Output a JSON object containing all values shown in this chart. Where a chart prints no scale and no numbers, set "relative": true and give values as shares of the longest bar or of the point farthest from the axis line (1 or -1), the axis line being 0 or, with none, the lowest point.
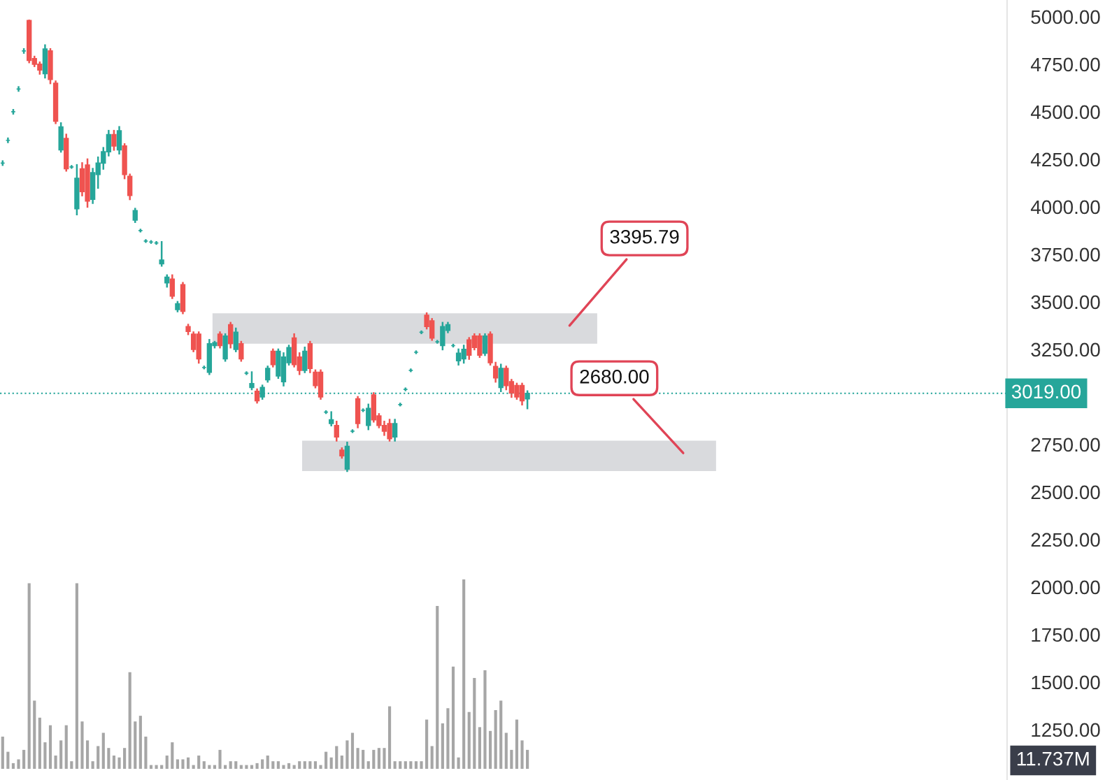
{
  "chart_data": [
    {
      "type": "candlestick",
      "categories": [
        null,
        null,
        null,
        null,
        null,
        null,
        null,
        null,
        null,
        null,
        null,
        null,
        null,
        null,
        null,
        null,
        null,
        null,
        null,
        null,
        null,
        null,
        null,
        null,
        null,
        null,
        null,
        null,
        null,
        null,
        null,
        null,
        null,
        null,
        null,
        null,
        null,
        null,
        null,
        null,
        null,
        null,
        null,
        null,
        null,
        null,
        null,
        null,
        null,
        null,
        null,
        null,
        null,
        null,
        null,
        null,
        null,
        null,
        null,
        null,
        null,
        null,
        null,
        null,
        null,
        null,
        null,
        null,
        null,
        null,
        null,
        null,
        null,
        null,
        null,
        null,
        null,
        null,
        null,
        null,
        null,
        null,
        null,
        null,
        null,
        null,
        null,
        null,
        null,
        null,
        null,
        null,
        null,
        null,
        null,
        null,
        null,
        null,
        null,
        null,
        null,
        null,
        null,
        null,
        null,
        null,
        null,
        null,
        null,
        null,
        null,
        null,
        null,
        null,
        null,
        null,
        null,
        null,
        null,
        null,
        null,
        null,
        null,
        null,
        null,
        null,
        null,
        null,
        null,
        null,
        null,
        null,
        null,
        null,
        null,
        null,
        null,
        null,
        null,
        null,
        null,
        null,
        null,
        null,
        null,
        null,
        null,
        null,
        null,
        null,
        null,
        null,
        null,
        null,
        null,
        null,
        null,
        null,
        null,
        null,
        null,
        null,
        null,
        null,
        null,
        null,
        null,
        null,
        null,
        null,
        null,
        null,
        null,
        null,
        null,
        null,
        null,
        null,
        null,
        null,
        null,
        null,
        null,
        null,
        null,
        null,
        null,
        null,
        null,
        null
      ],
      "ohlc": [
        [
          4230,
          4240,
          4220,
          4230
        ],
        [
          4350,
          4360,
          4340,
          4350
        ],
        [
          4500,
          4510,
          4490,
          4500
        ],
        [
          4620,
          4630,
          4610,
          4620
        ],
        [
          4820,
          4830,
          4810,
          4820
        ],
        [
          4980,
          4980,
          4760,
          4770
        ],
        [
          4780,
          4790,
          4740,
          4750
        ],
        [
          4750,
          4760,
          4700,
          4720
        ],
        [
          4700,
          4850,
          4680,
          4830
        ],
        [
          4820,
          4830,
          4650,
          4670
        ],
        [
          4650,
          4660,
          4440,
          4450
        ],
        [
          4300,
          4440,
          4290,
          4420
        ],
        [
          4360,
          4380,
          4190,
          4200
        ],
        [
          4210,
          4215,
          4205,
          4210
        ],
        [
          3990,
          4220,
          3960,
          4150
        ],
        [
          4200,
          4230,
          4060,
          4080
        ],
        [
          4220,
          4250,
          4000,
          4030
        ],
        [
          4040,
          4200,
          4020,
          4180
        ],
        [
          4170,
          4260,
          4100,
          4230
        ],
        [
          4230,
          4310,
          4200,
          4290
        ],
        [
          4290,
          4400,
          4270,
          4380
        ],
        [
          4380,
          4400,
          4300,
          4320
        ],
        [
          4300,
          4420,
          4280,
          4400
        ],
        [
          4320,
          4330,
          4150,
          4170
        ],
        [
          4160,
          4170,
          4040,
          4060
        ],
        [
          3930,
          3990,
          3920,
          3980
        ],
        [
          3875,
          3880,
          3870,
          3875
        ],
        [
          3820,
          3825,
          3815,
          3820
        ],
        [
          3815,
          3820,
          3810,
          3815
        ],
        [
          3810,
          3815,
          3805,
          3810
        ],
        [
          3700,
          3815,
          3690,
          3720
        ],
        [
          3600,
          3640,
          3580,
          3630
        ],
        [
          3620,
          3640,
          3520,
          3530
        ],
        [
          3460,
          3500,
          3450,
          3490
        ],
        [
          3590,
          3600,
          3440,
          3450
        ],
        [
          3370,
          3380,
          3330,
          3345
        ],
        [
          3330,
          3340,
          3240,
          3250
        ],
        [
          3330,
          3340,
          3180,
          3200
        ],
        [
          3155,
          3160,
          3150,
          3155
        ],
        [
          3130,
          3300,
          3120,
          3280
        ],
        [
          3270,
          3290,
          3260,
          3285
        ],
        [
          3330,
          3340,
          3260,
          3270
        ],
        [
          3200,
          3330,
          3190,
          3320
        ],
        [
          3380,
          3390,
          3260,
          3280
        ],
        [
          3250,
          3360,
          3240,
          3340
        ],
        [
          3280,
          3290,
          3190,
          3200
        ],
        [
          3125,
          3130,
          3120,
          3125
        ],
        [
          3050,
          3130,
          3040,
          3070
        ],
        [
          3030,
          3040,
          2970,
          2980
        ],
        [
          3000,
          3060,
          2990,
          3050
        ],
        [
          3090,
          3160,
          3080,
          3150
        ],
        [
          3240,
          3250,
          3160,
          3170
        ],
        [
          3110,
          3250,
          3100,
          3240
        ],
        [
          3080,
          3230,
          3060,
          3210
        ],
        [
          3180,
          3270,
          3170,
          3260
        ],
        [
          3310,
          3330,
          3160,
          3170
        ],
        [
          3210,
          3230,
          3120,
          3140
        ],
        [
          3140,
          3260,
          3130,
          3240
        ],
        [
          3280,
          3290,
          3130,
          3150
        ],
        [
          3130,
          3140,
          3050,
          3060
        ],
        [
          3130,
          3140,
          2990,
          3000
        ],
        [
          2920,
          2925,
          2915,
          2920
        ],
        [
          2860,
          2920,
          2850,
          2880
        ],
        [
          2850,
          2870,
          2770,
          2790
        ],
        [
          2720,
          2730,
          2680,
          2690
        ],
        [
          2620,
          2760,
          2610,
          2740
        ],
        [
          2820,
          2825,
          2815,
          2820
        ],
        [
          2990,
          3000,
          2840,
          2860
        ],
        [
          2930,
          2935,
          2925,
          2930
        ],
        [
          2850,
          2960,
          2830,
          2940
        ],
        [
          3010,
          3020,
          2870,
          2880
        ],
        [
          2900,
          2910,
          2840,
          2850
        ],
        [
          2850,
          2870,
          2800,
          2820
        ],
        [
          2860,
          2880,
          2770,
          2780
        ],
        [
          2790,
          2880,
          2770,
          2860
        ],
        [
          2960,
          2965,
          2955,
          2960
        ],
        [
          3040,
          3045,
          3035,
          3040
        ],
        [
          3140,
          3145,
          3135,
          3140
        ],
        [
          3235,
          3240,
          3230,
          3235
        ],
        [
          3340,
          3345,
          3335,
          3340
        ],
        [
          3430,
          3440,
          3360,
          3370
        ],
        [
          3400,
          3410,
          3300,
          3310
        ],
        [
          3290,
          3295,
          3285,
          3290
        ],
        [
          3270,
          3390,
          3250,
          3370
        ],
        [
          3350,
          3390,
          3340,
          3380
        ],
        [
          3270,
          3275,
          3265,
          3270
        ],
        [
          3190,
          3250,
          3170,
          3230
        ],
        [
          3200,
          3270,
          3180,
          3250
        ],
        [
          3300,
          3310,
          3200,
          3220
        ],
        [
          3320,
          3330,
          3250,
          3260
        ],
        [
          3320,
          3330,
          3210,
          3220
        ],
        [
          3230,
          3330,
          3220,
          3320
        ],
        [
          3330,
          3340,
          3170,
          3180
        ],
        [
          3160,
          3180,
          3080,
          3100
        ],
        [
          3050,
          3170,
          3030,
          3150
        ],
        [
          3150,
          3160,
          3040,
          3060
        ],
        [
          3080,
          3090,
          3000,
          3020
        ],
        [
          3060,
          3070,
          2990,
          3000
        ],
        [
          3060,
          3070,
          2960,
          2980
        ],
        [
          2990,
          3030,
          2940,
          3019
        ],
        null,
        null,
        null,
        null,
        null,
        null,
        null,
        null,
        null,
        null,
        null,
        null,
        null,
        null,
        null,
        null,
        null,
        null,
        null,
        null,
        null,
        null,
        null,
        null,
        null,
        null,
        null,
        null,
        null,
        null,
        null,
        null,
        null,
        null,
        null,
        null,
        null,
        null,
        null,
        null,
        null,
        null,
        null,
        null,
        null,
        null,
        null,
        null,
        null,
        null,
        null,
        null,
        null,
        null,
        null,
        null,
        null,
        null,
        null,
        null,
        null,
        null,
        null,
        null,
        null,
        null,
        null,
        null,
        null,
        null,
        null,
        null,
        null,
        null,
        null,
        null,
        null,
        null,
        null,
        null,
        null,
        null,
        null,
        null,
        null,
        null,
        null,
        null,
        null,
        null
      ],
      "colors": [
        "#26a69a",
        "#26a69a",
        "#26a69a",
        "#26a69a",
        "#26a69a",
        "#ef5350",
        "#ef5350",
        "#ef5350",
        "#26a69a",
        "#ef5350",
        "#ef5350",
        "#26a69a",
        "#ef5350",
        "#26a69a",
        "#26a69a",
        "#ef5350",
        "#ef5350",
        "#26a69a",
        "#26a69a",
        "#26a69a",
        "#26a69a",
        "#ef5350",
        "#26a69a",
        "#ef5350",
        "#ef5350",
        "#26a69a",
        "#26a69a",
        "#26a69a",
        "#26a69a",
        "#26a69a",
        "#26a69a",
        "#26a69a",
        "#ef5350",
        "#26a69a",
        "#ef5350",
        "#ef5350",
        "#ef5350",
        "#ef5350",
        "#26a69a",
        "#26a69a",
        "#26a69a",
        "#ef5350",
        "#26a69a",
        "#ef5350",
        "#26a69a",
        "#ef5350",
        "#26a69a",
        "#26a69a",
        "#ef5350",
        "#26a69a",
        "#26a69a",
        "#ef5350",
        "#26a69a",
        "#26a69a",
        "#26a69a",
        "#ef5350",
        "#ef5350",
        "#26a69a",
        "#ef5350",
        "#ef5350",
        "#ef5350",
        "#26a69a",
        "#26a69a",
        "#ef5350",
        "#ef5350",
        "#26a69a",
        "#26a69a",
        "#ef5350",
        "#26a69a",
        "#26a69a",
        "#ef5350",
        "#ef5350",
        "#ef5350",
        "#ef5350",
        "#26a69a",
        "#26a69a",
        "#26a69a",
        "#26a69a",
        "#26a69a",
        "#26a69a",
        "#ef5350",
        "#ef5350",
        "#26a69a",
        "#26a69a",
        "#26a69a",
        "#26a69a",
        "#26a69a",
        "#26a69a",
        "#ef5350",
        "#ef5350",
        "#ef5350",
        "#26a69a",
        "#ef5350",
        "#ef5350",
        "#26a69a",
        "#ef5350",
        "#ef5350",
        "#ef5350",
        "#ef5350",
        "#26a69a",
        null,
        null,
        null,
        null,
        null,
        null,
        null,
        null,
        null,
        null,
        null,
        null,
        null,
        null,
        null,
        null,
        null,
        null,
        null,
        null,
        null,
        null,
        null,
        null,
        null,
        null,
        null,
        null,
        null,
        null,
        null,
        null,
        null,
        null,
        null,
        null,
        null,
        null,
        null,
        null,
        null,
        null,
        null,
        null,
        null,
        null,
        null,
        null,
        null,
        null,
        null,
        null,
        null,
        null,
        null,
        null,
        null,
        null,
        null,
        null,
        null,
        null,
        null,
        null,
        null,
        null,
        null,
        null,
        null,
        null,
        null,
        null,
        null,
        null,
        null,
        null,
        null,
        null,
        null,
        null,
        null,
        null,
        null,
        null,
        null,
        null,
        null,
        null,
        null,
        null
      ],
      "ylim": [
        985,
        5088
      ],
      "yticks": [
        {
          "value": 1250,
          "label": "1250.00"
        },
        {
          "value": 1500,
          "label": "1500.00"
        },
        {
          "value": 1750,
          "label": "1750.00"
        },
        {
          "value": 2000,
          "label": "2000.00"
        },
        {
          "value": 2250,
          "label": "2250.00"
        },
        {
          "value": 2500,
          "label": "2500.00"
        },
        {
          "value": 2750,
          "label": "2750.00"
        },
        {
          "value": 3250,
          "label": "3250.00"
        },
        {
          "value": 3500,
          "label": "3500.00"
        },
        {
          "value": 3750,
          "label": "3750.00"
        },
        {
          "value": 4000,
          "label": "4000.00"
        },
        {
          "value": 4250,
          "label": "4250.00"
        },
        {
          "value": 4500,
          "label": "4500.00"
        },
        {
          "value": 4750,
          "label": "4750.00"
        },
        {
          "value": 5000,
          "label": "5000.00"
        }
      ],
      "ref_lines": [
        {
          "axis": "y",
          "value": 3019,
          "label": "3019.00",
          "color": "#26a69a",
          "line_style": "dotted"
        }
      ],
      "bands": [
        {
          "axis": "y",
          "from": 3280,
          "to": 3440,
          "label": "3395.79",
          "color": "#d9dadd"
        },
        {
          "axis": "y",
          "from": 2610,
          "to": 2770,
          "label": "2680.00",
          "color": "#d9dadd"
        }
      ],
      "tick_labels": "y",
      "grid": false,
      "legend": false
    },
    {
      "type": "bar",
      "relative": true,
      "categories": [
        null,
        null,
        null,
        null,
        null,
        null,
        null,
        null,
        null,
        null,
        null,
        null,
        null,
        null,
        null,
        null,
        null,
        null,
        null,
        null,
        null,
        null,
        null,
        null,
        null,
        null,
        null,
        null,
        null,
        null,
        null,
        null,
        null,
        null,
        null,
        null,
        null,
        null,
        null,
        null,
        null,
        null,
        null,
        null,
        null,
        null,
        null,
        null,
        null,
        null,
        null,
        null,
        null,
        null,
        null,
        null,
        null,
        null,
        null,
        null,
        null,
        null,
        null,
        null,
        null,
        null,
        null,
        null,
        null,
        null,
        null,
        null,
        null,
        null,
        null,
        null,
        null,
        null,
        null,
        null,
        null,
        null,
        null,
        null,
        null,
        null,
        null,
        null,
        null,
        null,
        null,
        null,
        null,
        null,
        null,
        null,
        null,
        null,
        null,
        null,
        null,
        null,
        null,
        null,
        null,
        null,
        null,
        null,
        null,
        null,
        null,
        null,
        null,
        null,
        null,
        null,
        null,
        null,
        null,
        null,
        null,
        null,
        null,
        null,
        null,
        null,
        null,
        null,
        null,
        null,
        null,
        null,
        null,
        null,
        null,
        null,
        null,
        null,
        null,
        null,
        null,
        null,
        null,
        null,
        null,
        null,
        null,
        null,
        null,
        null,
        null,
        null,
        null,
        null,
        null,
        null,
        null,
        null,
        null,
        null,
        null,
        null,
        null,
        null,
        null,
        null,
        null,
        null,
        null,
        null,
        null,
        null,
        null,
        null,
        null,
        null,
        null,
        null,
        null,
        null,
        null,
        null,
        null,
        null,
        null,
        null,
        null,
        null,
        null,
        null
      ],
      "color": "#a6a6a6",
      "values": [
        0.17,
        0.09,
        0.03,
        0.05,
        0.1,
        0.98,
        0.36,
        0.27,
        0.14,
        0.23,
        0.07,
        0.15,
        0.23,
        0.04,
        0.98,
        0.25,
        0.15,
        0.04,
        0.12,
        0.19,
        0.11,
        0.07,
        0.06,
        0.11,
        0.51,
        0.25,
        0.28,
        0.17,
        0.02,
        0.02,
        0.02,
        0.07,
        0.14,
        0.05,
        0.05,
        0.06,
        0.02,
        0.07,
        0.04,
        0.02,
        0.02,
        0.1,
        0.02,
        0.04,
        0.04,
        0.02,
        0.02,
        0.02,
        0.03,
        0.05,
        0.07,
        0.04,
        0.04,
        0.02,
        0.03,
        0.02,
        0.04,
        0.04,
        0.04,
        0.04,
        0.02,
        0.09,
        0.06,
        0.12,
        0.07,
        0.15,
        0.19,
        0.11,
        0.1,
        0.04,
        0.1,
        0.11,
        0.11,
        0.33,
        0.04,
        0.04,
        0.04,
        0.04,
        0.04,
        0.04,
        0.26,
        0.12,
        0.86,
        0.24,
        0.32,
        0.54,
        0.06,
        1,
        0.3,
        0.48,
        0.22,
        0.52,
        0.2,
        0.31,
        0.36,
        0.19,
        0.1,
        0.26,
        0.15,
        0.1,
        null,
        null,
        null,
        null,
        null,
        null,
        null,
        null,
        null,
        null,
        null,
        null,
        null,
        null,
        null,
        null,
        null,
        null,
        null,
        null,
        null,
        null,
        null,
        null,
        null,
        null,
        null,
        null,
        null,
        null,
        null,
        null,
        null,
        null,
        null,
        null,
        null,
        null,
        null,
        null,
        null,
        null,
        null,
        null,
        null,
        null,
        null,
        null,
        null,
        null,
        null,
        null,
        null,
        null,
        null,
        null,
        null,
        null,
        null,
        null,
        null,
        null,
        null,
        null,
        null,
        null,
        null,
        null,
        null,
        null,
        null,
        null,
        null,
        null,
        null,
        null,
        null,
        null,
        null,
        null,
        null,
        null,
        null,
        null,
        null,
        null,
        null,
        null,
        null,
        null
      ],
      "annotations": [
        "11.737M"
      ],
      "tick_labels": false,
      "grid": false,
      "legend": false
    }
  ]
}
